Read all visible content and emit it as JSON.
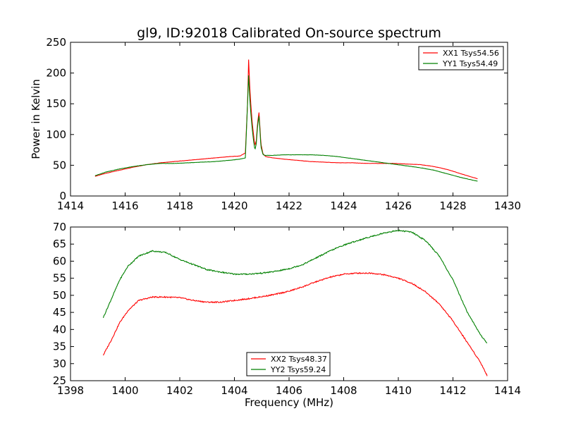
{
  "chart_data": [
    {
      "type": "line",
      "title": "gl9, ID:92018 Calibrated On-source spectrum",
      "xlabel": "",
      "ylabel": "Power in Kelvin",
      "xlim": [
        1414,
        1430
      ],
      "ylim": [
        0,
        250
      ],
      "x_ticks": [
        "1414",
        "1416",
        "1418",
        "1420",
        "1422",
        "1424",
        "1426",
        "1428",
        "1430"
      ],
      "y_ticks": [
        "0",
        "50",
        "100",
        "150",
        "200",
        "250"
      ],
      "legend_position": "top-right",
      "grid": false,
      "series": [
        {
          "name": "XX1 Tsys54.56",
          "color": "#ff0000",
          "x": [
            1414.9,
            1415.3,
            1415.8,
            1416.3,
            1416.8,
            1417.3,
            1417.8,
            1418.3,
            1418.8,
            1419.3,
            1419.8,
            1420.2,
            1420.4,
            1420.48,
            1420.52,
            1420.56,
            1420.6,
            1420.65,
            1420.7,
            1420.75,
            1420.8,
            1420.85,
            1420.9,
            1420.93,
            1420.97,
            1421.05,
            1421.15,
            1421.4,
            1421.8,
            1422.3,
            1422.8,
            1423.3,
            1423.8,
            1424.3,
            1424.8,
            1425.3,
            1425.8,
            1426.3,
            1426.8,
            1427.3,
            1427.8,
            1428.3,
            1428.9
          ],
          "y": [
            32,
            37,
            42,
            47,
            51,
            54,
            56,
            58,
            60,
            62,
            64,
            65,
            70,
            150,
            222,
            180,
            150,
            120,
            100,
            82,
            90,
            120,
            136,
            115,
            85,
            68,
            64,
            62,
            60,
            58,
            56,
            55,
            54,
            54,
            53,
            53,
            53,
            52,
            51,
            48,
            43,
            36,
            28
          ]
        },
        {
          "name": "YY1 Tsys54.49",
          "color": "#008000",
          "x": [
            1414.9,
            1415.3,
            1415.8,
            1416.3,
            1416.8,
            1417.3,
            1417.8,
            1418.3,
            1418.8,
            1419.3,
            1419.8,
            1420.2,
            1420.4,
            1420.48,
            1420.52,
            1420.56,
            1420.6,
            1420.65,
            1420.7,
            1420.75,
            1420.8,
            1420.85,
            1420.9,
            1420.93,
            1420.97,
            1421.05,
            1421.15,
            1421.4,
            1421.8,
            1422.3,
            1422.8,
            1423.3,
            1423.8,
            1424.3,
            1424.8,
            1425.3,
            1425.8,
            1426.3,
            1426.8,
            1427.3,
            1427.8,
            1428.3,
            1428.9
          ],
          "y": [
            33,
            39,
            44,
            48,
            51,
            53,
            53,
            54,
            55,
            56,
            58,
            60,
            62,
            150,
            196,
            160,
            135,
            110,
            90,
            75,
            85,
            115,
            130,
            110,
            80,
            67,
            66,
            66,
            67,
            67,
            67,
            66,
            64,
            61,
            58,
            55,
            52,
            49,
            46,
            42,
            36,
            30,
            24
          ]
        }
      ]
    },
    {
      "type": "line",
      "title": "",
      "xlabel": "Frequency (MHz)",
      "ylabel": "",
      "xlim": [
        1398,
        1414
      ],
      "ylim": [
        25,
        70
      ],
      "x_ticks": [
        "1398",
        "1400",
        "1402",
        "1404",
        "1406",
        "1408",
        "1410",
        "1412",
        "1414"
      ],
      "y_ticks": [
        "25",
        "30",
        "35",
        "40",
        "45",
        "50",
        "55",
        "60",
        "65",
        "70"
      ],
      "legend_position": "bottom-center",
      "grid": false,
      "series": [
        {
          "name": "XX2 Tsys48.37",
          "color": "#ff0000",
          "x": [
            1399.2,
            1399.5,
            1399.8,
            1400.1,
            1400.5,
            1401.0,
            1401.5,
            1402.0,
            1402.5,
            1403.0,
            1403.5,
            1404.0,
            1404.5,
            1405.0,
            1405.5,
            1406.0,
            1406.5,
            1407.0,
            1407.5,
            1408.0,
            1408.5,
            1409.0,
            1409.5,
            1410.0,
            1410.5,
            1411.0,
            1411.5,
            1412.0,
            1412.5,
            1413.0,
            1413.25
          ],
          "y": [
            32.5,
            37,
            42,
            45.5,
            48.5,
            49.5,
            49.5,
            49.3,
            48.5,
            48,
            48,
            48.5,
            49,
            49.6,
            50.3,
            51.2,
            52.5,
            54,
            55.3,
            56.2,
            56.5,
            56.5,
            56,
            55,
            53.5,
            51,
            47.5,
            42.5,
            36.5,
            30.5,
            26.5
          ]
        },
        {
          "name": "YY2 Tsys59.24",
          "color": "#008000",
          "x": [
            1399.2,
            1399.5,
            1399.8,
            1400.1,
            1400.5,
            1401.0,
            1401.5,
            1402.0,
            1402.5,
            1403.0,
            1403.5,
            1404.0,
            1404.5,
            1405.0,
            1405.5,
            1406.0,
            1406.5,
            1407.0,
            1407.5,
            1408.0,
            1408.5,
            1409.0,
            1409.5,
            1410.0,
            1410.5,
            1411.0,
            1411.5,
            1412.0,
            1412.5,
            1413.0,
            1413.25
          ],
          "y": [
            43.5,
            49,
            54.5,
            58.5,
            61.5,
            63,
            62.5,
            60.5,
            59,
            57.5,
            56.8,
            56.2,
            56.2,
            56.5,
            57,
            57.8,
            59,
            61,
            63,
            64.7,
            66,
            67.2,
            68.3,
            69,
            68.5,
            66,
            61.5,
            54.5,
            45.5,
            38.5,
            36
          ]
        }
      ]
    }
  ]
}
